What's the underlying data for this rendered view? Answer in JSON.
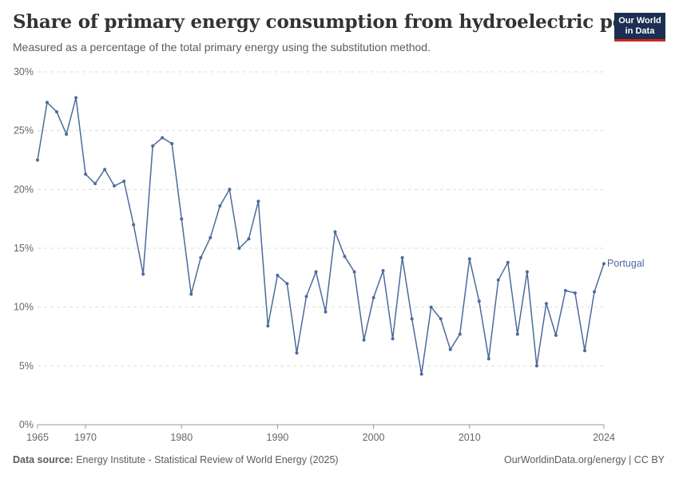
{
  "header": {
    "title": "Share of primary energy consumption from hydroelectric power",
    "subtitle": "Measured as a percentage of the total primary energy using the substitution method.",
    "logo_line1": "Our World",
    "logo_line2": "in Data"
  },
  "footer": {
    "source_label": "Data source:",
    "source_text": " Energy Institute - Statistical Review of World Energy (2025)",
    "credit": "OurWorldinData.org/energy | CC BY"
  },
  "colors": {
    "series": "#4c6a9c",
    "grid": "#dddddd",
    "text": "#666666"
  },
  "chart_data": {
    "type": "line",
    "title": "Share of primary energy consumption from hydroelectric power",
    "subtitle": "Measured as a percentage of the total primary energy using the substitution method.",
    "xlim": [
      1965,
      2024
    ],
    "ylim": [
      0,
      30
    ],
    "y_ticks": [
      0,
      5,
      10,
      15,
      20,
      25,
      30
    ],
    "y_tick_labels": [
      "0%",
      "5%",
      "10%",
      "15%",
      "20%",
      "25%",
      "30%"
    ],
    "x_ticks": [
      1965,
      1970,
      1980,
      1990,
      2000,
      2010,
      2024
    ],
    "x_tick_labels": [
      "1965",
      "1970",
      "1980",
      "1990",
      "2000",
      "2010",
      "2024"
    ],
    "grid": true,
    "series": [
      {
        "name": "Portugal",
        "color": "#4c6a9c",
        "x": [
          1965,
          1966,
          1967,
          1968,
          1969,
          1970,
          1971,
          1972,
          1973,
          1974,
          1975,
          1976,
          1977,
          1978,
          1979,
          1980,
          1981,
          1982,
          1983,
          1984,
          1985,
          1986,
          1987,
          1988,
          1989,
          1990,
          1991,
          1992,
          1993,
          1994,
          1995,
          1996,
          1997,
          1998,
          1999,
          2000,
          2001,
          2002,
          2003,
          2004,
          2005,
          2006,
          2007,
          2008,
          2009,
          2010,
          2011,
          2012,
          2013,
          2014,
          2015,
          2016,
          2017,
          2018,
          2019,
          2020,
          2021,
          2022,
          2023,
          2024
        ],
        "values": [
          22.5,
          27.4,
          26.6,
          24.7,
          27.8,
          21.3,
          20.5,
          21.7,
          20.3,
          20.7,
          17.0,
          12.8,
          23.7,
          24.4,
          23.9,
          17.5,
          11.1,
          14.2,
          15.9,
          18.6,
          20.0,
          15.0,
          15.8,
          19.0,
          8.4,
          12.7,
          12.0,
          6.1,
          10.9,
          13.0,
          9.6,
          16.4,
          14.3,
          13.0,
          7.2,
          10.8,
          13.1,
          7.3,
          14.2,
          9.0,
          4.3,
          10.0,
          9.0,
          6.4,
          7.7,
          14.1,
          10.5,
          5.6,
          12.3,
          13.8,
          7.7,
          13.0,
          5.0,
          10.3,
          7.6,
          11.4,
          11.2,
          6.3,
          11.3,
          13.7
        ]
      }
    ]
  }
}
